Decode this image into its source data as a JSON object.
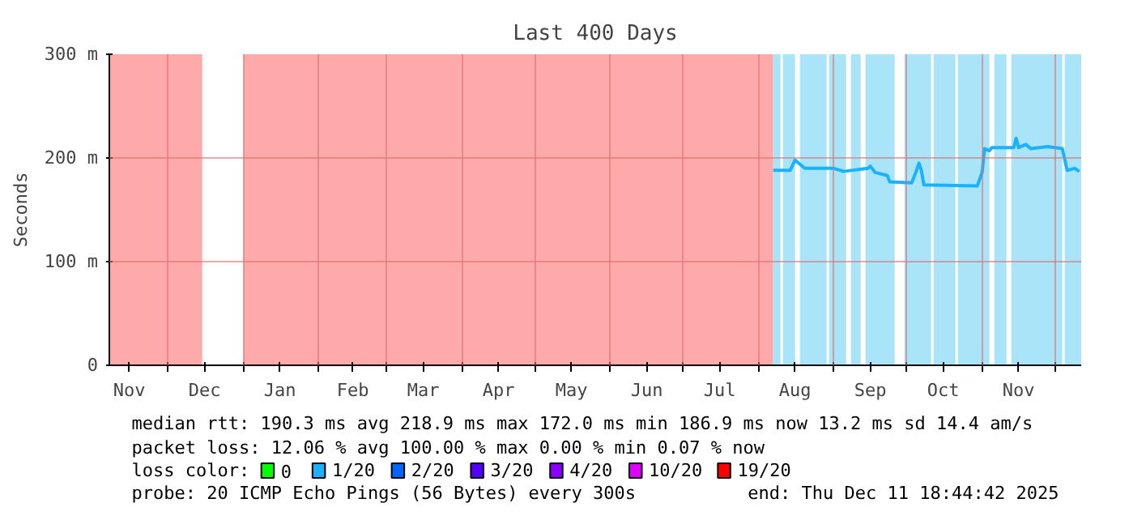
{
  "chart_data": {
    "type": "line",
    "title": "Last 400 Days",
    "ylabel": "Seconds",
    "x": [
      "2025-08-07",
      "2025-08-14",
      "2025-08-16",
      "2025-08-18",
      "2025-08-20",
      "2025-09-01",
      "2025-09-05",
      "2025-09-15",
      "2025-09-16",
      "2025-09-18",
      "2025-09-23",
      "2025-09-24",
      "2025-10-03",
      "2025-10-05",
      "2025-10-06",
      "2025-10-07",
      "2025-10-08",
      "2025-10-30",
      "2025-11-01",
      "2025-11-02",
      "2025-11-04",
      "2025-11-05",
      "2025-11-14",
      "2025-11-15",
      "2025-11-16",
      "2025-11-19",
      "2025-11-21",
      "2025-11-28",
      "2025-12-04",
      "2025-12-06",
      "2025-12-09",
      "2025-12-11"
    ],
    "series": [
      {
        "name": "0",
        "color": "#00ff00",
        "values": [
          null,
          null,
          null,
          null,
          null,
          null,
          null,
          null,
          null,
          null,
          null,
          null,
          null,
          null,
          null,
          null,
          null,
          null,
          null,
          null,
          null,
          null,
          null,
          null,
          null,
          null,
          null,
          null,
          null,
          null,
          null,
          null
        ]
      },
      {
        "name": "1/20",
        "color": "#1ab2ff",
        "values": [
          188,
          188,
          198,
          194,
          190,
          190,
          187,
          190,
          192,
          186,
          183,
          177,
          176,
          188,
          195,
          188,
          174,
          173,
          186,
          209,
          207,
          210,
          210,
          219,
          210,
          213,
          209,
          211,
          209,
          188,
          190,
          187
        ]
      },
      {
        "name": "2/20",
        "color": "#0066ff",
        "values": [
          null,
          null,
          null,
          null,
          null,
          null,
          null,
          null,
          null,
          null,
          null,
          null,
          null,
          null,
          null,
          null,
          null,
          null,
          null,
          null,
          null,
          null,
          null,
          null,
          null,
          null,
          null,
          null,
          null,
          null,
          null,
          null
        ]
      },
      {
        "name": "3/20",
        "color": "#5500ff",
        "values": [
          null,
          null,
          null,
          null,
          null,
          null,
          null,
          null,
          null,
          null,
          null,
          null,
          null,
          null,
          null,
          null,
          null,
          null,
          null,
          null,
          null,
          null,
          null,
          null,
          null,
          null,
          null,
          null,
          null,
          null,
          null,
          null
        ]
      },
      {
        "name": "4/20",
        "color": "#8a00ff",
        "values": [
          null,
          null,
          null,
          null,
          null,
          null,
          null,
          null,
          null,
          null,
          null,
          null,
          null,
          null,
          null,
          null,
          null,
          null,
          null,
          null,
          null,
          null,
          null,
          null,
          null,
          null,
          null,
          null,
          null,
          null,
          null,
          null
        ]
      },
      {
        "name": "10/20",
        "color": "#dd00ff",
        "values": [
          null,
          null,
          null,
          null,
          null,
          null,
          null,
          null,
          null,
          null,
          null,
          null,
          null,
          null,
          null,
          null,
          null,
          null,
          null,
          null,
          null,
          null,
          null,
          null,
          null,
          null,
          null,
          null,
          null,
          null,
          null,
          null
        ]
      },
      {
        "name": "19/20",
        "color": "#ff0000",
        "values": [
          null,
          null,
          null,
          null,
          null,
          null,
          null,
          null,
          null,
          null,
          null,
          null,
          null,
          null,
          null,
          null,
          null,
          null,
          null,
          null,
          null,
          null,
          null,
          null,
          null,
          null,
          null,
          null,
          null,
          null,
          null,
          null
        ]
      }
    ],
    "xlim": [
      "2024-11-06T18:44",
      "2025-12-11T18:44"
    ],
    "xticks": [
      {
        "value": "2024-11-15",
        "label": "Nov"
      },
      {
        "value": "2024-12-01",
        "label": null
      },
      {
        "value": "2024-12-16",
        "label": "Dec"
      },
      {
        "value": "2025-01-01",
        "label": null
      },
      {
        "value": "2025-01-16",
        "label": "Jan"
      },
      {
        "value": "2025-02-01",
        "label": null
      },
      {
        "value": "2025-02-15",
        "label": "Feb"
      },
      {
        "value": "2025-03-01",
        "label": null
      },
      {
        "value": "2025-03-16",
        "label": "Mar"
      },
      {
        "value": "2025-04-01",
        "label": null
      },
      {
        "value": "2025-04-16",
        "label": "Apr"
      },
      {
        "value": "2025-05-01",
        "label": null
      },
      {
        "value": "2025-05-16",
        "label": "May"
      },
      {
        "value": "2025-06-01",
        "label": null
      },
      {
        "value": "2025-06-16",
        "label": "Jun"
      },
      {
        "value": "2025-07-01",
        "label": null
      },
      {
        "value": "2025-07-16",
        "label": "Jul"
      },
      {
        "value": "2025-08-01",
        "label": null
      },
      {
        "value": "2025-08-16",
        "label": "Aug"
      },
      {
        "value": "2025-09-01",
        "label": null
      },
      {
        "value": "2025-09-16",
        "label": "Sep"
      },
      {
        "value": "2025-10-01",
        "label": null
      },
      {
        "value": "2025-10-16",
        "label": "Oct"
      },
      {
        "value": "2025-11-01",
        "label": null
      },
      {
        "value": "2025-11-16",
        "label": "Nov"
      },
      {
        "value": "2025-12-01",
        "label": null
      }
    ],
    "ylim": [
      0,
      300
    ],
    "yticks": [
      {
        "value": 0,
        "label": "0"
      },
      {
        "value": 100,
        "label": "100 m"
      },
      {
        "value": 200,
        "label": "200 m"
      },
      {
        "value": 300,
        "label": "300 m"
      }
    ],
    "grid": true,
    "legend": "bottom",
    "legend_title": "loss color:",
    "bands": [
      {
        "axis": "x",
        "from": "2024-11-06T18:44",
        "to": "2024-12-15",
        "color": "#ffaaaa"
      },
      {
        "axis": "x",
        "from": "2025-01-01",
        "to": "2025-08-07",
        "color": "#ffaaaa"
      },
      {
        "axis": "x",
        "from": "2025-08-07",
        "to": "2025-08-10",
        "color": "#aae4f8"
      },
      {
        "axis": "x",
        "from": "2025-08-11",
        "to": "2025-08-16",
        "color": "#aae4f8"
      },
      {
        "axis": "x",
        "from": "2025-08-18",
        "to": "2025-08-29",
        "color": "#aae4f8"
      },
      {
        "axis": "x",
        "from": "2025-08-30",
        "to": "2025-09-06",
        "color": "#aae4f8"
      },
      {
        "axis": "x",
        "from": "2025-09-08",
        "to": "2025-09-12",
        "color": "#aae4f8"
      },
      {
        "axis": "x",
        "from": "2025-09-14",
        "to": "2025-09-26",
        "color": "#aae4f8"
      },
      {
        "axis": "x",
        "from": "2025-09-30",
        "to": "2025-10-11",
        "color": "#aae4f8"
      },
      {
        "axis": "x",
        "from": "2025-10-12",
        "to": "2025-10-21",
        "color": "#aae4f8"
      },
      {
        "axis": "x",
        "from": "2025-10-22",
        "to": "2025-11-04",
        "color": "#aae4f8"
      },
      {
        "axis": "x",
        "from": "2025-11-06",
        "to": "2025-11-11",
        "color": "#aae4f8"
      },
      {
        "axis": "x",
        "from": "2025-11-13",
        "to": "2025-12-04",
        "color": "#aae4f8"
      },
      {
        "axis": "x",
        "from": "2025-12-05",
        "to": "2025-12-11T18:44",
        "color": "#aae4f8"
      }
    ],
    "annotations": [
      "median rtt:  190.3 ms avg  218.9 ms max  172.0 ms min  186.9 ms now  13.2 ms sd  14.4  am/s",
      "packet loss: 12.06 % avg  100.00 % max  0.00 % min  0.07 % now",
      "probe:       20 ICMP Echo Pings (56 Bytes) every 300s",
      "end: Thu Dec 11 18:44:42 2025"
    ]
  }
}
